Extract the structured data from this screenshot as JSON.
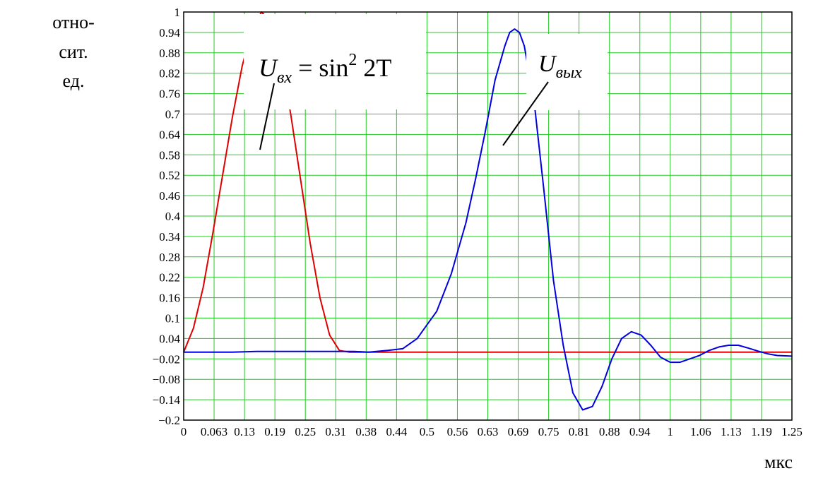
{
  "chart_data": {
    "type": "line",
    "title": "",
    "ylabel_lines": [
      "отно-",
      "сит.",
      "ед."
    ],
    "xlabel": "мкс",
    "xlim": [
      0,
      1.25
    ],
    "ylim": [
      -0.2,
      1
    ],
    "grid": true,
    "x_ticks": [
      "0",
      "0.063",
      "0.13",
      "0.19",
      "0.25",
      "0.31",
      "0.38",
      "0.44",
      "0.5",
      "0.56",
      "0.63",
      "0.69",
      "0.75",
      "0.81",
      "0.88",
      "0.94",
      "1",
      "1.06",
      "1.13",
      "1.19",
      "1.25"
    ],
    "y_ticks": [
      "1",
      "0.94",
      "0.88",
      "0.82",
      "0.76",
      "0.7",
      "0.64",
      "0.58",
      "0.52",
      "0.46",
      "0.4",
      "0.34",
      "0.28",
      "0.22",
      "0.16",
      "0.1",
      "0.04",
      "−0.02",
      "−0.08",
      "−0.14",
      "−0.2"
    ],
    "annotations": {
      "input_formula": {
        "var": "U",
        "sub": "вх",
        "rest": " = sin",
        "sup": "2",
        "tail": " 2T"
      },
      "output_label": {
        "var": "U",
        "sub": "вых"
      }
    },
    "series": [
      {
        "key": "input",
        "color": "#e00000",
        "x": [
          0,
          0.02,
          0.04,
          0.06,
          0.08,
          0.1,
          0.12,
          0.14,
          0.16,
          0.18,
          0.2,
          0.22,
          0.24,
          0.26,
          0.28,
          0.3,
          0.32,
          0.34,
          0.36,
          0.38,
          0.4,
          0.45,
          0.5,
          0.6,
          0.7,
          0.8,
          0.9,
          1.0,
          1.1,
          1.2,
          1.25
        ],
        "y": [
          0,
          0.07,
          0.19,
          0.35,
          0.52,
          0.69,
          0.84,
          0.95,
          1.0,
          0.97,
          0.86,
          0.7,
          0.51,
          0.32,
          0.16,
          0.05,
          0.005,
          0,
          0,
          0,
          0,
          0,
          0,
          0,
          0,
          0,
          0,
          0,
          0,
          0,
          0
        ]
      },
      {
        "key": "output",
        "color": "#0000e0",
        "x": [
          0,
          0.05,
          0.1,
          0.15,
          0.2,
          0.25,
          0.3,
          0.35,
          0.38,
          0.42,
          0.45,
          0.48,
          0.5,
          0.52,
          0.55,
          0.58,
          0.6,
          0.62,
          0.64,
          0.66,
          0.67,
          0.68,
          0.69,
          0.7,
          0.72,
          0.74,
          0.76,
          0.78,
          0.8,
          0.82,
          0.84,
          0.86,
          0.88,
          0.9,
          0.92,
          0.94,
          0.96,
          0.98,
          1.0,
          1.02,
          1.04,
          1.06,
          1.08,
          1.1,
          1.12,
          1.14,
          1.16,
          1.18,
          1.2,
          1.22,
          1.25
        ],
        "y": [
          0,
          0,
          0,
          0.002,
          0.002,
          0.002,
          0.002,
          0.002,
          0,
          0.005,
          0.01,
          0.04,
          0.08,
          0.12,
          0.23,
          0.38,
          0.51,
          0.65,
          0.8,
          0.9,
          0.94,
          0.95,
          0.94,
          0.9,
          0.74,
          0.48,
          0.21,
          0.02,
          -0.12,
          -0.17,
          -0.16,
          -0.1,
          -0.02,
          0.04,
          0.06,
          0.05,
          0.02,
          -0.015,
          -0.03,
          -0.03,
          -0.02,
          -0.01,
          0.005,
          0.015,
          0.02,
          0.02,
          0.012,
          0.003,
          -0.005,
          -0.01,
          -0.012
        ]
      }
    ]
  }
}
